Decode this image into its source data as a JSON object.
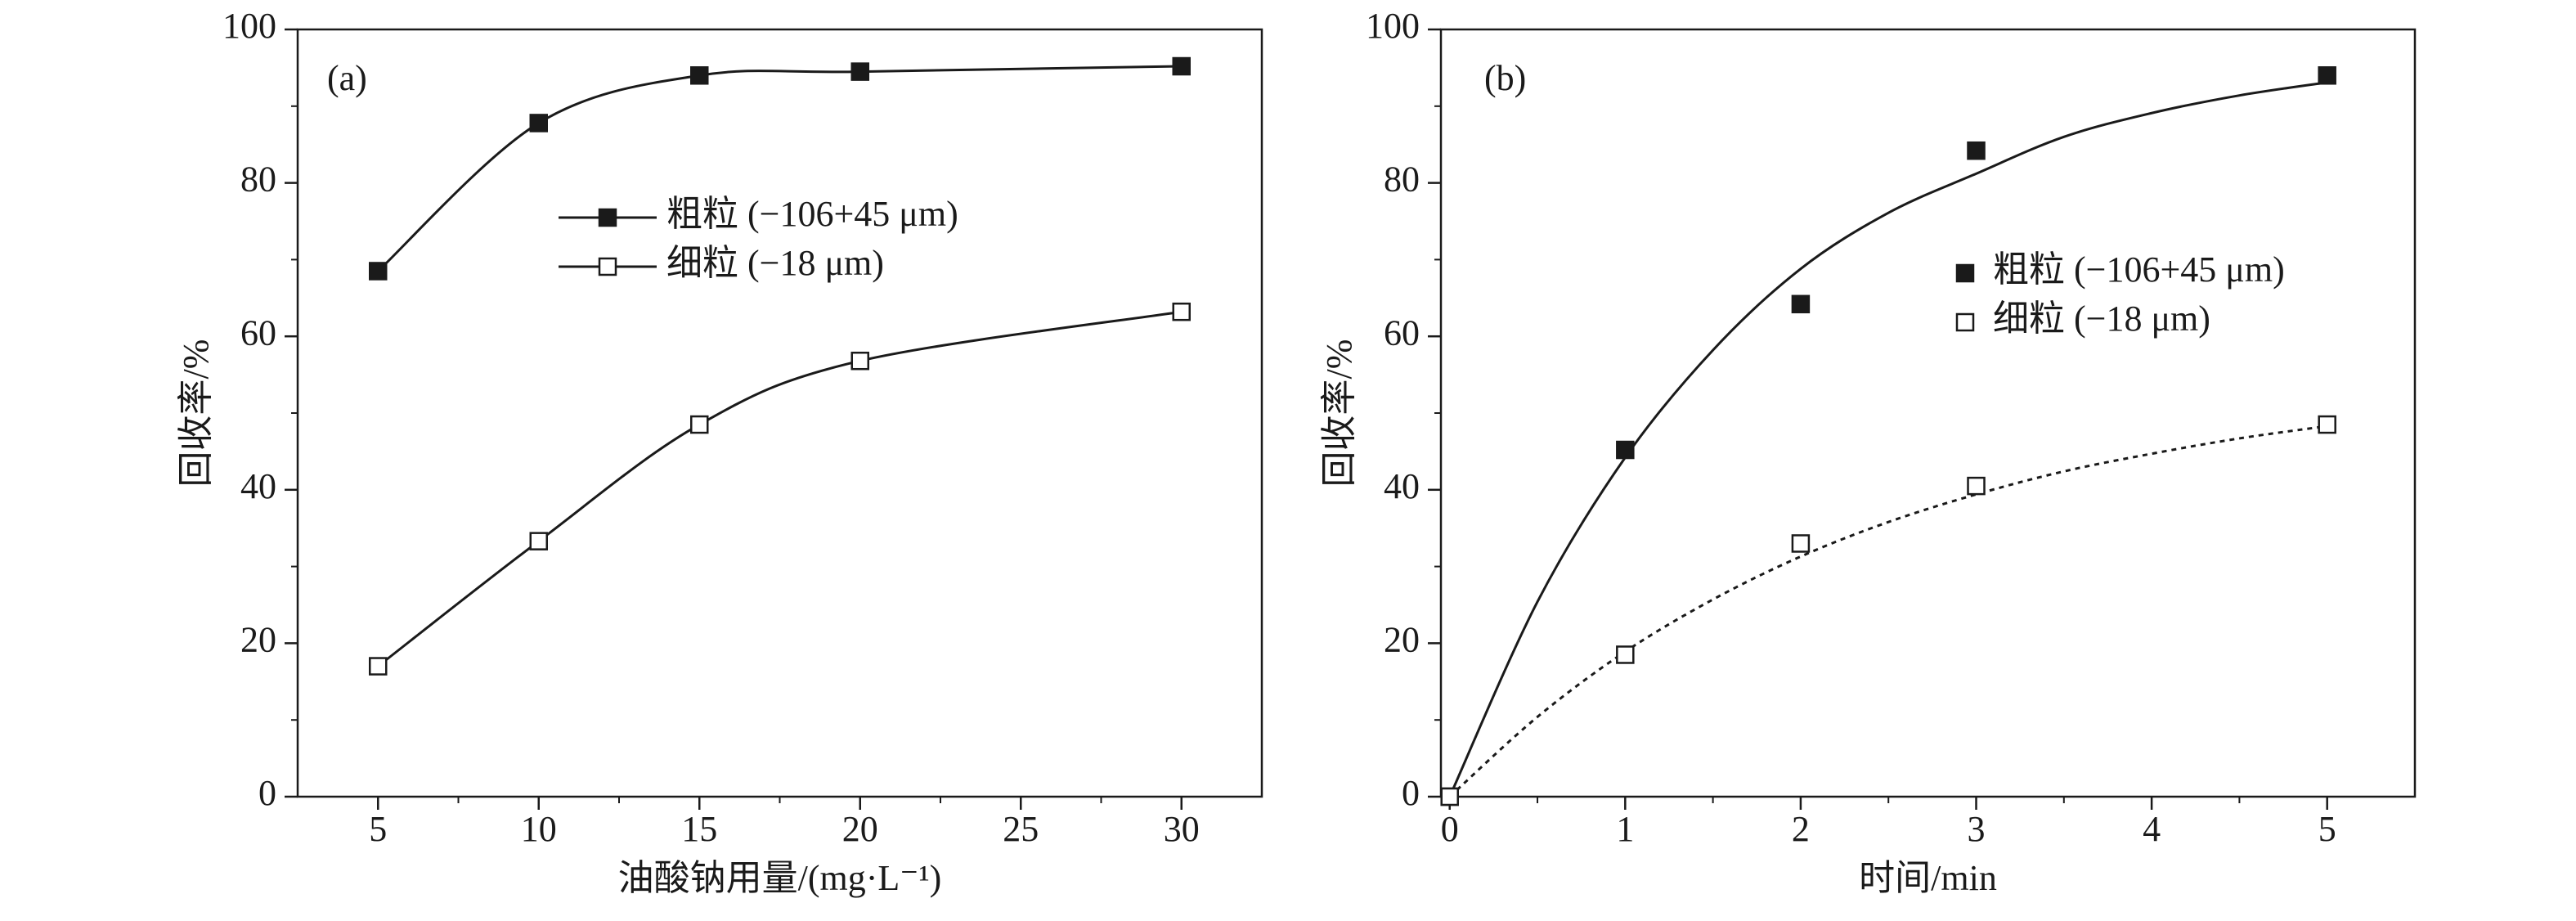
{
  "chart_data": [
    {
      "type": "line",
      "panel_label": "(a)",
      "smooth": true,
      "xlabel": "油酸钠用量/(mg·L⁻¹)",
      "ylabel": "回收率/%",
      "x": [
        5,
        10,
        15,
        20,
        30
      ],
      "xlim": [
        2.5,
        32.5
      ],
      "xticks": [
        5,
        10,
        15,
        20,
        25,
        30
      ],
      "ylim": [
        0,
        100
      ],
      "yticks": [
        0,
        20,
        40,
        60,
        80,
        100
      ],
      "series": [
        {
          "name": "粗粒 (−106+45 μm)",
          "color": "#1a1a1a",
          "marker": "filled",
          "values": [
            68.5,
            87.8,
            94,
            94.5,
            95.2
          ]
        },
        {
          "name": "细粒 (−18 μm)",
          "color": "#1a1a1a",
          "marker": "open",
          "values": [
            17,
            33.3,
            48.5,
            56.8,
            63.2
          ]
        }
      ]
    },
    {
      "type": "scatter",
      "panel_label": "(b)",
      "xlabel": "时间/min",
      "ylabel": "回收率/%",
      "x": [
        0,
        1,
        2,
        3,
        5
      ],
      "xlim": [
        -0.05,
        5.5
      ],
      "xticks": [
        0,
        1,
        2,
        3,
        4,
        5
      ],
      "ylim": [
        0,
        100
      ],
      "yticks": [
        0,
        20,
        40,
        60,
        80,
        100
      ],
      "series": [
        {
          "name": "粗粒 (−106+45 μm)",
          "color": "#1a1a1a",
          "marker": "filled",
          "values": [
            0,
            45.2,
            64.2,
            84.2,
            94
          ]
        },
        {
          "name": "细粒 (−18 μm)",
          "color": "#1a1a1a",
          "marker": "open",
          "values": [
            0,
            18.5,
            33,
            40.5,
            48.5
          ]
        }
      ],
      "fit_lines": [
        {
          "dash": "solid",
          "x": [
            0,
            0.5,
            1,
            1.5,
            2,
            2.5,
            3,
            3.5,
            4,
            4.5,
            5
          ],
          "values": [
            0,
            25.4,
            44.2,
            58.2,
            68.8,
            76.1,
            81.2,
            86.0,
            89.1,
            91.4,
            93.1
          ]
        },
        {
          "dash": "dotted",
          "x": [
            0,
            0.5,
            1,
            1.5,
            2,
            2.5,
            3,
            3.5,
            4,
            4.5,
            5
          ],
          "values": [
            0,
            10.4,
            18.9,
            25.7,
            31.3,
            35.8,
            39.4,
            42.4,
            44.7,
            46.7,
            48.3
          ]
        }
      ]
    }
  ]
}
